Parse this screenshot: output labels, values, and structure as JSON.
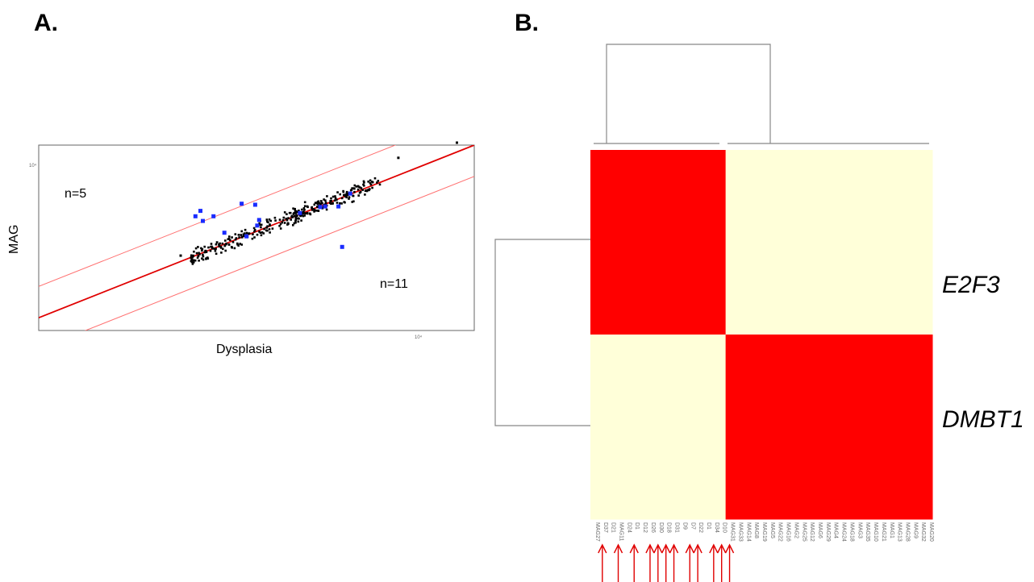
{
  "panels": {
    "a_label": "A.",
    "b_label": "B."
  },
  "chart_data": [
    {
      "type": "scatter",
      "xlabel": "Dysplasia",
      "ylabel": "MAG",
      "scale": "log-log",
      "tick_labels": {
        "y_top": "10⁴",
        "x_right": "10⁴"
      },
      "xlim": [
        1,
        1000
      ],
      "ylim": [
        0.6,
        1000
      ],
      "annotations": {
        "upper": "n=5",
        "lower": "n=11"
      },
      "lines": {
        "identity": {
          "color": "#e00000",
          "offset_factor": 1
        },
        "upper_bound": {
          "color": "#ff7070",
          "offset_factor": 3.5
        },
        "lower_bound": {
          "color": "#ff7070",
          "offset_factor": 0.2857
        }
      },
      "highlighted_points": [
        [
          12,
          58
        ],
        [
          13,
          72
        ],
        [
          13.5,
          48
        ],
        [
          16,
          58
        ],
        [
          25,
          96
        ],
        [
          31,
          92
        ],
        [
          32,
          40
        ],
        [
          33,
          50
        ],
        [
          19,
          30
        ],
        [
          27,
          26
        ],
        [
          63,
          66
        ],
        [
          87,
          84
        ],
        [
          94,
          86
        ],
        [
          116,
          86
        ],
        [
          123,
          17
        ],
        [
          140,
          144
        ]
      ],
      "colors": {
        "points": "#000000",
        "highlighted": "#1a2cff"
      }
    },
    {
      "type": "heatmap",
      "rows": [
        "E2F3",
        "DMBT1"
      ],
      "columns": [
        "MAG27",
        "D37",
        "D21",
        "MAG11",
        "D24",
        "D1",
        "D12",
        "D26",
        "D30",
        "D18",
        "D31",
        "D9",
        "D7",
        "D22",
        "D1",
        "D34",
        "D10",
        "MAG31",
        "MAG33",
        "MAG14",
        "MAG8",
        "MAG19",
        "MAG5",
        "MAG22",
        "MAG16",
        "MAG2",
        "MAG25",
        "MAG12",
        "MAG6",
        "MAG29",
        "MAG4",
        "MAG24",
        "MAG18",
        "MAG3",
        "MAG35",
        "MAG10",
        "MAG21",
        "MAG1",
        "MAG13",
        "MAG28",
        "MAG9",
        "MAG32",
        "MAG20"
      ],
      "clusters": [
        {
          "columns": 17,
          "E2F3": "high",
          "DMBT1": "low"
        },
        {
          "columns": 26,
          "E2F3": "low",
          "DMBT1": "high"
        }
      ],
      "colors": {
        "high": "#ff0000",
        "low": "#ffffd9"
      },
      "marked_column_indices": [
        1,
        3,
        5,
        7,
        8,
        9,
        10,
        12,
        13,
        15,
        16,
        17
      ],
      "arrow_color": "#e00000"
    }
  ]
}
